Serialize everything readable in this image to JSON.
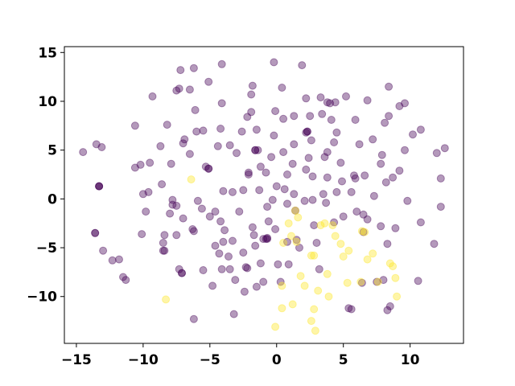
{
  "chart_data": {
    "type": "scatter",
    "title": "",
    "xlabel": "",
    "ylabel": "",
    "xlim": [
      -15.9,
      14.0
    ],
    "ylim": [
      -14.8,
      15.6
    ],
    "xticks": [
      -15,
      -10,
      -5,
      0,
      5,
      10
    ],
    "yticks": [
      -10,
      -5,
      0,
      5,
      10,
      15
    ],
    "xtick_labels": [
      "−15",
      "−10",
      "−5",
      "0",
      "5",
      "10"
    ],
    "ytick_labels": [
      "−10",
      "−5",
      "0",
      "5",
      "10",
      "15"
    ],
    "grid": false,
    "legend": "none",
    "marker_alpha": 0.4,
    "colors": {
      "class_0": "#440154",
      "class_1": "#fde725"
    },
    "series": [
      {
        "color": "#440154",
        "points": [
          [
            -14.5,
            4.8
          ],
          [
            -13.5,
            5.6
          ],
          [
            -13.1,
            5.3
          ],
          [
            -13.3,
            1.3
          ],
          [
            -13.6,
            -3.5
          ],
          [
            -13.0,
            -5.3
          ],
          [
            -12.3,
            -6.3
          ],
          [
            -11.8,
            -6.2
          ],
          [
            -11.5,
            -8.0
          ],
          [
            -11.3,
            -8.3
          ],
          [
            -10.6,
            7.5
          ],
          [
            -10.6,
            3.2
          ],
          [
            -10.2,
            3.5
          ],
          [
            -10.0,
            0.5
          ],
          [
            -9.8,
            -1.3
          ],
          [
            -10.1,
            -3.6
          ],
          [
            -9.6,
            0.7
          ],
          [
            -9.3,
            10.5
          ],
          [
            -9.5,
            3.7
          ],
          [
            -8.7,
            5.4
          ],
          [
            -8.6,
            1.5
          ],
          [
            -8.4,
            -3.7
          ],
          [
            -8.5,
            -4.5
          ],
          [
            -8.4,
            -5.3
          ],
          [
            -8.2,
            7.6
          ],
          [
            -8.0,
            -1.5
          ],
          [
            -7.9,
            3.6
          ],
          [
            -7.8,
            -0.1
          ],
          [
            -7.8,
            -0.6
          ],
          [
            -7.5,
            -3.7
          ],
          [
            -7.3,
            11.3
          ],
          [
            -7.5,
            11.1
          ],
          [
            -7.2,
            13.2
          ],
          [
            -7.0,
            5.7
          ],
          [
            -6.9,
            6.1
          ],
          [
            -7.0,
            -2.0
          ],
          [
            -7.1,
            -7.6
          ],
          [
            -7.3,
            -7.2
          ],
          [
            -6.5,
            11.2
          ],
          [
            -6.5,
            4.6
          ],
          [
            -6.3,
            -3.1
          ],
          [
            -6.1,
            9.1
          ],
          [
            -6.2,
            13.4
          ],
          [
            -6.2,
            -3.3
          ],
          [
            -6.0,
            6.9
          ],
          [
            -5.9,
            -0.2
          ],
          [
            -5.6,
            -1.0
          ],
          [
            -5.5,
            -7.3
          ],
          [
            -5.5,
            7.0
          ],
          [
            -5.3,
            3.3
          ],
          [
            -5.1,
            12.0
          ],
          [
            -5.1,
            3.1
          ],
          [
            -5.0,
            -1.8
          ],
          [
            -4.8,
            -8.9
          ],
          [
            -4.6,
            -1.3
          ],
          [
            -4.6,
            -4.8
          ],
          [
            -4.4,
            5.4
          ],
          [
            -4.2,
            7.2
          ],
          [
            -4.2,
            -2.3
          ],
          [
            -4.0,
            0.8
          ],
          [
            -4.0,
            -4.4
          ],
          [
            -4.1,
            -7.2
          ],
          [
            -4.1,
            13.8
          ],
          [
            -4.1,
            9.8
          ],
          [
            -3.9,
            -3.2
          ],
          [
            -3.6,
            -5.9
          ],
          [
            -3.5,
            -7.2
          ],
          [
            -3.5,
            5.5
          ],
          [
            -3.3,
            0.7
          ],
          [
            -3.3,
            -4.3
          ],
          [
            -3.1,
            -8.3
          ],
          [
            -3.2,
            -11.8
          ],
          [
            -3.0,
            4.7
          ],
          [
            -2.8,
            -1.3
          ],
          [
            -2.6,
            6.9
          ],
          [
            -2.5,
            0.9
          ],
          [
            -2.5,
            -5.5
          ],
          [
            -2.4,
            -9.5
          ],
          [
            -2.3,
            -7.0
          ],
          [
            -2.2,
            8.4
          ],
          [
            -2.1,
            2.7
          ],
          [
            -2.1,
            2.5
          ],
          [
            -1.9,
            10.7
          ],
          [
            -1.9,
            8.9
          ],
          [
            -1.8,
            11.6
          ],
          [
            -1.8,
            -2.9
          ],
          [
            -1.7,
            -3.7
          ],
          [
            -1.6,
            5.0
          ],
          [
            -1.6,
            -4.8
          ],
          [
            -1.5,
            -9.0
          ],
          [
            -1.5,
            7.1
          ],
          [
            -1.3,
            0.9
          ],
          [
            -1.2,
            3.3
          ],
          [
            -1.2,
            -6.6
          ],
          [
            -1.0,
            -8.5
          ],
          [
            -0.8,
            2.7
          ],
          [
            -0.7,
            -0.8
          ],
          [
            -0.6,
            -2.3
          ],
          [
            -0.7,
            -4.0
          ],
          [
            -0.8,
            -4.1
          ],
          [
            -0.4,
            4.3
          ],
          [
            -0.3,
            -0.1
          ],
          [
            -0.2,
            6.5
          ],
          [
            -0.2,
            14.0
          ],
          [
            -0.1,
            9.0
          ],
          [
            -0.1,
            -3.1
          ],
          [
            0.0,
            1.3
          ],
          [
            0.1,
            -6.7
          ],
          [
            0.3,
            -8.5
          ],
          [
            0.4,
            11.4
          ],
          [
            0.5,
            8.2
          ],
          [
            0.5,
            4.8
          ],
          [
            0.6,
            1.0
          ],
          [
            0.8,
            2.5
          ],
          [
            0.8,
            -0.5
          ],
          [
            0.8,
            -4.4
          ],
          [
            0.9,
            -6.7
          ],
          [
            1.2,
            3.6
          ],
          [
            1.3,
            8.5
          ],
          [
            1.3,
            5.6
          ],
          [
            1.3,
            0.5
          ],
          [
            1.4,
            -1.2
          ],
          [
            1.5,
            -4.2
          ],
          [
            1.7,
            -5.0
          ],
          [
            1.9,
            13.7
          ],
          [
            2.1,
            -0.2
          ],
          [
            2.2,
            10.3
          ],
          [
            2.2,
            6.8
          ],
          [
            2.2,
            3.0
          ],
          [
            2.4,
            4.2
          ],
          [
            2.5,
            8.5
          ],
          [
            2.6,
            6.0
          ],
          [
            2.7,
            -0.1
          ],
          [
            2.7,
            2.3
          ],
          [
            2.8,
            -2.7
          ],
          [
            3.0,
            -4.5
          ],
          [
            3.2,
            -7.2
          ],
          [
            3.3,
            10.4
          ],
          [
            3.4,
            8.7
          ],
          [
            3.5,
            0.5
          ],
          [
            3.6,
            4.3
          ],
          [
            3.7,
            -0.4
          ],
          [
            3.8,
            2.2
          ],
          [
            3.8,
            4.8
          ],
          [
            4.1,
            8.1
          ],
          [
            4.3,
            5.8
          ],
          [
            4.3,
            -2.4
          ],
          [
            4.4,
            9.9
          ],
          [
            4.5,
            6.8
          ],
          [
            4.5,
            0.7
          ],
          [
            4.9,
            1.8
          ],
          [
            4.8,
            3.7
          ],
          [
            5.0,
            -1.8
          ],
          [
            5.2,
            10.5
          ],
          [
            5.4,
            -11.2
          ],
          [
            5.6,
            -11.3
          ],
          [
            5.6,
            0.7
          ],
          [
            5.8,
            2.4
          ],
          [
            5.9,
            8.1
          ],
          [
            5.9,
            2.1
          ],
          [
            6.0,
            -1.3
          ],
          [
            6.2,
            5.6
          ],
          [
            6.4,
            -8.6
          ],
          [
            6.5,
            -1.6
          ],
          [
            6.6,
            2.4
          ],
          [
            6.8,
            10.1
          ],
          [
            6.8,
            -2.1
          ],
          [
            7.2,
            6.1
          ],
          [
            7.3,
            0.3
          ],
          [
            7.5,
            -8.5
          ],
          [
            7.8,
            3.6
          ],
          [
            7.8,
            -2.8
          ],
          [
            7.9,
            4.5
          ],
          [
            8.0,
            -8.3
          ],
          [
            8.1,
            7.8
          ],
          [
            8.2,
            1.7
          ],
          [
            8.4,
            8.5
          ],
          [
            8.4,
            11.5
          ],
          [
            8.3,
            -4.6
          ],
          [
            8.5,
            -11.0
          ],
          [
            8.3,
            -11.4
          ],
          [
            8.7,
            2.2
          ],
          [
            8.9,
            -3.0
          ],
          [
            9.2,
            9.5
          ],
          [
            9.2,
            2.9
          ],
          [
            9.6,
            9.8
          ],
          [
            9.6,
            5.0
          ],
          [
            9.8,
            -0.2
          ],
          [
            10.2,
            6.6
          ],
          [
            10.6,
            -8.4
          ],
          [
            10.8,
            -2.4
          ],
          [
            10.8,
            7.1
          ],
          [
            11.8,
            -4.6
          ],
          [
            12.0,
            4.7
          ],
          [
            12.3,
            2.1
          ],
          [
            12.3,
            -0.8
          ],
          [
            12.6,
            5.2
          ],
          [
            2.3,
            6.9
          ],
          [
            3.8,
            9.9
          ],
          [
            -1.4,
            5.0
          ],
          [
            -13.3,
            1.3
          ],
          [
            -8.5,
            -5.3
          ],
          [
            -7.5,
            -0.7
          ],
          [
            -1.0,
            -4.1
          ],
          [
            -2.2,
            -7.1
          ],
          [
            -4.3,
            -5.6
          ]
        ]
      },
      {
        "color": "#440154",
        "note": "darker overlapping markers",
        "points": [
          [
            -13.3,
            1.3
          ],
          [
            -13.6,
            -3.5
          ],
          [
            -7.1,
            -7.6
          ],
          [
            -6.2,
            -12.3
          ],
          [
            -5.1,
            3.1
          ],
          [
            -1.6,
            5.0
          ],
          [
            -0.7,
            -4.1
          ],
          [
            2.3,
            6.9
          ],
          [
            4.0,
            9.8
          ],
          [
            6.5,
            -3.4
          ]
        ]
      },
      {
        "color": "#fde725",
        "points": [
          [
            -8.3,
            -10.3
          ],
          [
            -6.4,
            2.0
          ],
          [
            1.4,
            -1.2
          ],
          [
            1.6,
            -1.9
          ],
          [
            0.9,
            -2.5
          ],
          [
            1.1,
            -3.8
          ],
          [
            1.5,
            -4.4
          ],
          [
            0.4,
            -8.9
          ],
          [
            1.8,
            -7.9
          ],
          [
            2.1,
            -8.9
          ],
          [
            2.6,
            -5.8
          ],
          [
            2.8,
            -5.8
          ],
          [
            2.8,
            -11.3
          ],
          [
            2.6,
            -12.5
          ],
          [
            2.9,
            -13.5
          ],
          [
            3.1,
            -9.4
          ],
          [
            3.3,
            -2.7
          ],
          [
            3.6,
            -2.5
          ],
          [
            3.8,
            -7.7
          ],
          [
            3.9,
            -10.0
          ],
          [
            4.2,
            -2.7
          ],
          [
            4.4,
            -3.8
          ],
          [
            4.8,
            -4.6
          ],
          [
            5.0,
            -5.9
          ],
          [
            5.3,
            -8.6
          ],
          [
            5.4,
            -5.3
          ],
          [
            6.4,
            -3.3
          ],
          [
            6.6,
            -3.4
          ],
          [
            6.8,
            -6.2
          ],
          [
            7.2,
            -5.6
          ],
          [
            7.6,
            -8.5
          ],
          [
            8.5,
            -6.6
          ],
          [
            8.7,
            -6.9
          ],
          [
            8.9,
            -8.1
          ],
          [
            9.0,
            -10.0
          ],
          [
            -0.1,
            -13.1
          ],
          [
            0.4,
            -11.2
          ],
          [
            1.2,
            -10.8
          ],
          [
            0.5,
            -4.5
          ],
          [
            6.3,
            -8.5
          ]
        ]
      }
    ]
  }
}
